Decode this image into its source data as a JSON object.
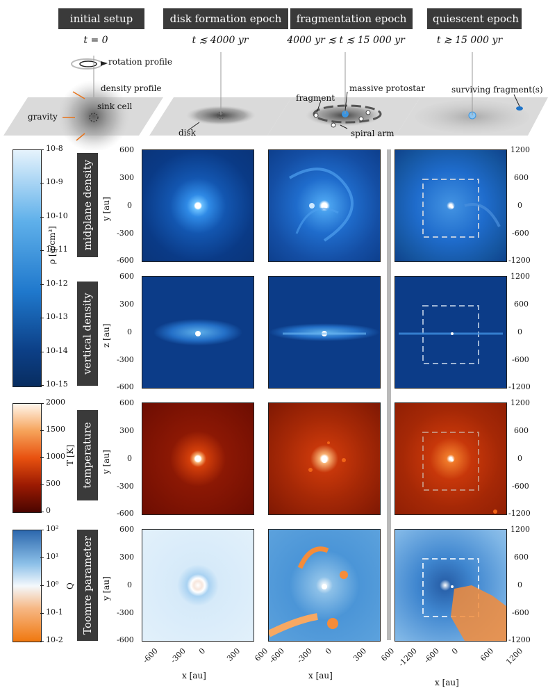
{
  "epochs": [
    {
      "label": "initial setup",
      "time": "t = 0"
    },
    {
      "label": "disk formation epoch",
      "time": "t ≲ 4000 yr"
    },
    {
      "label": "fragmentation epoch",
      "time": "4000 yr ≲ t ≲ 15 000 yr"
    },
    {
      "label": "quiescent epoch",
      "time": "t ≳ 15 000 yr"
    }
  ],
  "schematic": {
    "rotation": "rotation profile",
    "density": "density profile",
    "gravity": "gravity",
    "sink": "sink cell",
    "disk": "disk",
    "fragment": "fragment",
    "massive": "massive protostar",
    "spiral": "spiral arm",
    "surviving": "surviving fragment(s)"
  },
  "rows": [
    {
      "label": "midplane density",
      "ylabel": "y [au]"
    },
    {
      "label": "vertical density",
      "ylabel": "z [au]"
    },
    {
      "label": "temperature",
      "ylabel": "y [au]"
    },
    {
      "label": "Toomre parameter",
      "ylabel": "y [au]"
    }
  ],
  "colorbars": {
    "density": {
      "label": "ρ [g/cm³]",
      "ticks": [
        "10-8",
        "10-9",
        "10-10",
        "10-11",
        "10-12",
        "10-13",
        "10-14",
        "10-15"
      ]
    },
    "temperature": {
      "label": "T [K]",
      "ticks": [
        "2000",
        "1500",
        "1000",
        "500",
        "0"
      ]
    },
    "toomre": {
      "label": "Q",
      "ticks": [
        "10²",
        "10¹",
        "10⁰",
        "10-1",
        "10-2"
      ]
    }
  },
  "axes": {
    "left_yticks": [
      "600",
      "300",
      "0",
      "-300",
      "-600"
    ],
    "right_yticks": [
      "1200",
      "600",
      "0",
      "-600",
      "-1200"
    ],
    "xticks_small": [
      "-600",
      "-300",
      "0",
      "300",
      "600"
    ],
    "xticks_large": [
      "-1200",
      "-600",
      "0",
      "600",
      "1200"
    ],
    "xlabel": "x [au]"
  },
  "colors": {
    "density_dark": "#0b2f6b",
    "density_light": "#d8ecfb",
    "temp_dark": "#6a0a00",
    "temp_light": "#fff4e6",
    "toomre_blue": "#2f6fb3",
    "toomre_orange": "#f07a12"
  }
}
